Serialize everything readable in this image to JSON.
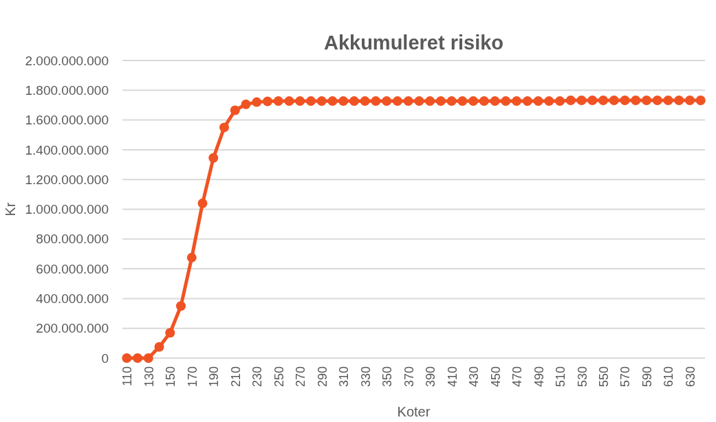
{
  "chart_data": {
    "type": "line",
    "title": "Akkumuleret risiko",
    "xlabel": "Koter",
    "ylabel": "Kr",
    "categories": [
      "110",
      null,
      "130",
      null,
      "150",
      null,
      "170",
      null,
      "190",
      null,
      "210",
      null,
      "230",
      null,
      "250",
      null,
      "270",
      null,
      "290",
      null,
      "310",
      null,
      "330",
      null,
      "350",
      null,
      "370",
      null,
      "390",
      null,
      "410",
      null,
      "430",
      null,
      "450",
      null,
      "470",
      null,
      "490",
      null,
      "510",
      null,
      "530",
      null,
      "550",
      null,
      "570",
      null,
      "590",
      null,
      "610",
      null,
      "630",
      null
    ],
    "series": [
      {
        "color": "#f05323",
        "values": [
          0,
          0,
          0,
          75000000,
          170000000,
          350000000,
          675000000,
          1040000000,
          1345000000,
          1550000000,
          1665000000,
          1705000000,
          1720000000,
          1725000000,
          1727000000,
          1727000000,
          1727000000,
          1727000000,
          1727000000,
          1727000000,
          1727000000,
          1727000000,
          1727000000,
          1727000000,
          1727000000,
          1727000000,
          1727000000,
          1727000000,
          1727000000,
          1727000000,
          1727000000,
          1727000000,
          1727000000,
          1727000000,
          1727000000,
          1727000000,
          1727000000,
          1727000000,
          1727000000,
          1727000000,
          1727000000,
          1732000000,
          1732000000,
          1732000000,
          1732000000,
          1732000000,
          1732000000,
          1732000000,
          1732000000,
          1732000000,
          1732000000,
          1732000000,
          1732000000,
          1732000000
        ]
      }
    ],
    "ylim": [
      0,
      2000000000
    ],
    "yticks": [
      0,
      {
        "value": 200000000,
        "label": "200.000.000"
      },
      {
        "value": 400000000,
        "label": "400.000.000"
      },
      {
        "value": 600000000,
        "label": "600.000.000"
      },
      {
        "value": 800000000,
        "label": "800.000.000"
      },
      {
        "value": 1000000000,
        "label": "1.000.000.000"
      },
      {
        "value": 1200000000,
        "label": "1.200.000.000"
      },
      {
        "value": 1400000000,
        "label": "1.400.000.000"
      },
      {
        "value": 1600000000,
        "label": "1.600.000.000"
      },
      {
        "value": 1800000000,
        "label": "1.800.000.000"
      },
      {
        "value": 2000000000,
        "label": "2.000.000.000"
      }
    ],
    "grid": "y",
    "marker": "circle",
    "line_style": "solid"
  }
}
